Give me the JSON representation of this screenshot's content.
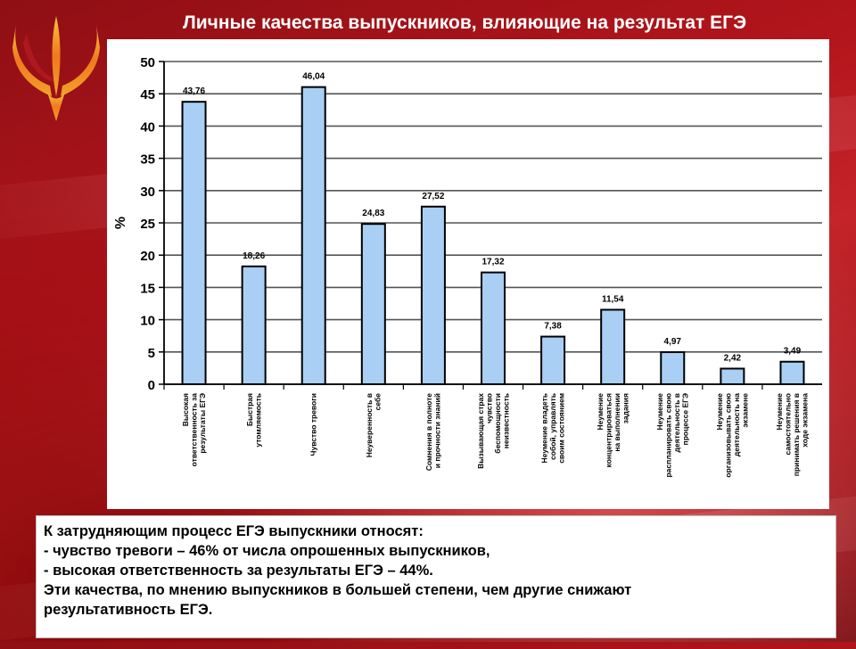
{
  "title": "Личные качества выпускников, влияющие на результат ЕГЭ",
  "logo": {
    "icon": "psi-logo-icon",
    "colors": [
      "#f6b233",
      "#e8651c",
      "#c8202a"
    ]
  },
  "chart_data": {
    "type": "bar",
    "ylabel": "%",
    "ylim": [
      0,
      50
    ],
    "yticks": [
      0,
      5,
      10,
      15,
      20,
      25,
      30,
      35,
      40,
      45,
      50
    ],
    "grid": true,
    "bar_color": "#a9cff5",
    "bar_edge_color": "#000000",
    "categories": [
      "Высокая ответственность за результаты ЕГЭ",
      "Быстрая утомляемость",
      "Чувство тревоги",
      "Неуверенность в себе",
      "Сомнения в полноте и прочности знаний",
      "Вызывающая страх чувство беспомощности неизвестность",
      "Неумение владеть собой, управлять своим состоянием",
      "Неумение концентрироваться на выполнении задания",
      "Неумение распланировать свою деятельность в процессе ЕГЭ",
      "Неумение организовывать свою деятельность на экзамене",
      "Неумение самостоятельно принимать решения в ходе экзамена"
    ],
    "values": [
      43.76,
      18.26,
      46.04,
      24.83,
      27.52,
      17.32,
      7.38,
      11.54,
      4.97,
      2.42,
      3.49
    ],
    "value_labels": [
      "43,76",
      "18,26",
      "46,04",
      "24,83",
      "27,52",
      "17,32",
      "7,38",
      "11,54",
      "4,97",
      "2,42",
      "3,49"
    ]
  },
  "text_block": {
    "line1": "К затрудняющим  процесс ЕГЭ выпускники относят:",
    "line2": "- чувство тревоги – 46% от числа опрошенных выпускников,",
    "line3": "- высокая ответственность за результаты ЕГЭ  – 44%.",
    "line4": "Эти качества, по мнению выпускников в большей степени, чем другие снижают",
    "line5": "результативность ЕГЭ."
  }
}
